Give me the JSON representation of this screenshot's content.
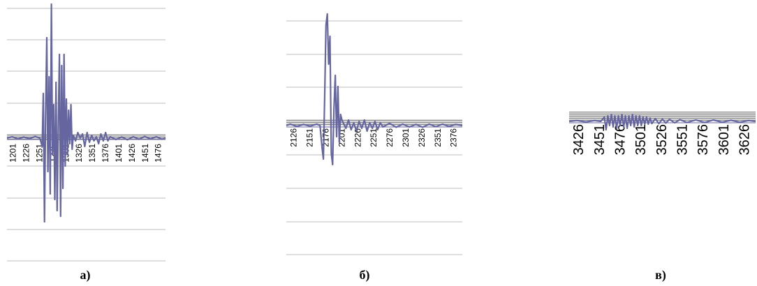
{
  "chart_data": [
    {
      "type": "line",
      "panel_label": "а)",
      "x_ticks": [
        "1201",
        "1226",
        "1251",
        "1276",
        "1301",
        "1326",
        "1351",
        "1376",
        "1401",
        "1426",
        "1451",
        "1476"
      ],
      "grid": true,
      "series": [
        {
          "color": "#6565a0",
          "points": [
            [
              1201,
              0
            ],
            [
              1210,
              0.5
            ],
            [
              1220,
              -0.3
            ],
            [
              1230,
              0.4
            ],
            [
              1240,
              -0.2
            ],
            [
              1250,
              0.6
            ],
            [
              1258,
              0
            ],
            [
              1262,
              -3
            ],
            [
              1264,
              16
            ],
            [
              1266,
              -30
            ],
            [
              1268,
              8
            ],
            [
              1270,
              36
            ],
            [
              1272,
              -12
            ],
            [
              1274,
              22
            ],
            [
              1276,
              -20
            ],
            [
              1278,
              48
            ],
            [
              1280,
              -6
            ],
            [
              1282,
              12
            ],
            [
              1284,
              -22
            ],
            [
              1286,
              20
            ],
            [
              1288,
              -26
            ],
            [
              1290,
              6
            ],
            [
              1292,
              30
            ],
            [
              1294,
              -28
            ],
            [
              1296,
              26
            ],
            [
              1298,
              -18
            ],
            [
              1300,
              30
            ],
            [
              1302,
              -10
            ],
            [
              1304,
              14
            ],
            [
              1306,
              -6
            ],
            [
              1308,
              10
            ],
            [
              1310,
              -2
            ],
            [
              1312,
              12
            ],
            [
              1314,
              -4
            ],
            [
              1316,
              1
            ],
            [
              1320,
              -1
            ],
            [
              1324,
              2
            ],
            [
              1328,
              0
            ],
            [
              1332,
              1.5
            ],
            [
              1336,
              -3
            ],
            [
              1340,
              2
            ],
            [
              1344,
              -1.5
            ],
            [
              1348,
              1
            ],
            [
              1352,
              -1
            ],
            [
              1356,
              0.5
            ],
            [
              1360,
              -2
            ],
            [
              1364,
              1.5
            ],
            [
              1368,
              -1
            ],
            [
              1372,
              2
            ],
            [
              1376,
              -1
            ],
            [
              1380,
              0.5
            ],
            [
              1390,
              -0.5
            ],
            [
              1400,
              0.4
            ],
            [
              1410,
              -0.6
            ],
            [
              1420,
              0.5
            ],
            [
              1430,
              -0.4
            ],
            [
              1440,
              0.6
            ],
            [
              1450,
              -0.3
            ],
            [
              1460,
              0.5
            ],
            [
              1470,
              -0.4
            ],
            [
              1476,
              0
            ]
          ]
        }
      ]
    },
    {
      "type": "line",
      "panel_label": "б)",
      "x_ticks": [
        "2126",
        "2151",
        "2176",
        "2201",
        "2226",
        "2251",
        "2276",
        "2301",
        "2326",
        "2351",
        "2376"
      ],
      "grid": true,
      "series": [
        {
          "color": "#6565a0",
          "points": [
            [
              2114,
              0
            ],
            [
              2120,
              0.5
            ],
            [
              2130,
              -0.3
            ],
            [
              2140,
              0.4
            ],
            [
              2150,
              -0.2
            ],
            [
              2160,
              0.5
            ],
            [
              2165,
              0
            ],
            [
              2168,
              -8
            ],
            [
              2170,
              -12
            ],
            [
              2172,
              10
            ],
            [
              2174,
              36
            ],
            [
              2176,
              40
            ],
            [
              2178,
              22
            ],
            [
              2180,
              32
            ],
            [
              2182,
              -10
            ],
            [
              2184,
              -14
            ],
            [
              2186,
              6
            ],
            [
              2188,
              18
            ],
            [
              2190,
              -4
            ],
            [
              2192,
              14
            ],
            [
              2194,
              -6
            ],
            [
              2196,
              4
            ],
            [
              2198,
              2
            ],
            [
              2200,
              1
            ],
            [
              2204,
              -1
            ],
            [
              2208,
              2
            ],
            [
              2212,
              -1.5
            ],
            [
              2216,
              1
            ],
            [
              2220,
              -2
            ],
            [
              2224,
              1.5
            ],
            [
              2228,
              -1
            ],
            [
              2232,
              2
            ],
            [
              2236,
              -2
            ],
            [
              2240,
              1
            ],
            [
              2244,
              -1
            ],
            [
              2248,
              1.5
            ],
            [
              2252,
              -1.5
            ],
            [
              2256,
              1
            ],
            [
              2260,
              -0.5
            ],
            [
              2270,
              0.8
            ],
            [
              2280,
              -0.6
            ],
            [
              2290,
              0.5
            ],
            [
              2300,
              -0.5
            ],
            [
              2310,
              0.4
            ],
            [
              2320,
              -0.6
            ],
            [
              2330,
              0.5
            ],
            [
              2340,
              -0.4
            ],
            [
              2350,
              0.5
            ],
            [
              2360,
              -0.3
            ],
            [
              2370,
              0.4
            ],
            [
              2380,
              0
            ]
          ]
        }
      ]
    },
    {
      "type": "line",
      "panel_label": "в)",
      "x_ticks": [
        "3426",
        "3451",
        "3476",
        "3501",
        "3526",
        "3551",
        "3576",
        "3601",
        "3626"
      ],
      "grid": true,
      "series": [
        {
          "color": "#6565a0",
          "points": [
            [
              3426,
              0
            ],
            [
              3435,
              0.3
            ],
            [
              3445,
              -0.2
            ],
            [
              3455,
              0.3
            ],
            [
              3462,
              0
            ],
            [
              3466,
              1.5
            ],
            [
              3468,
              -3
            ],
            [
              3470,
              2
            ],
            [
              3472,
              -1.5
            ],
            [
              3474,
              2.5
            ],
            [
              3476,
              -2
            ],
            [
              3478,
              2
            ],
            [
              3480,
              -2.5
            ],
            [
              3482,
              2
            ],
            [
              3484,
              -1.5
            ],
            [
              3486,
              2.5
            ],
            [
              3488,
              -2
            ],
            [
              3490,
              2
            ],
            [
              3492,
              -2.5
            ],
            [
              3494,
              2
            ],
            [
              3496,
              -1.5
            ],
            [
              3498,
              2.5
            ],
            [
              3500,
              -2
            ],
            [
              3502,
              2
            ],
            [
              3504,
              -1.5
            ],
            [
              3506,
              2
            ],
            [
              3508,
              -1.5
            ],
            [
              3510,
              1.5
            ],
            [
              3512,
              -1
            ],
            [
              3514,
              1.5
            ],
            [
              3516,
              -1
            ],
            [
              3518,
              1.2
            ],
            [
              3520,
              -0.8
            ],
            [
              3524,
              1
            ],
            [
              3528,
              -0.8
            ],
            [
              3532,
              0.8
            ],
            [
              3536,
              -0.6
            ],
            [
              3540,
              0.7
            ],
            [
              3546,
              -0.5
            ],
            [
              3552,
              0.6
            ],
            [
              3560,
              -0.4
            ],
            [
              3570,
              0.5
            ],
            [
              3580,
              -0.4
            ],
            [
              3590,
              0.5
            ],
            [
              3600,
              -0.3
            ],
            [
              3610,
              0.4
            ],
            [
              3620,
              -0.3
            ],
            [
              3630,
              0.3
            ],
            [
              3638,
              0
            ]
          ]
        }
      ]
    }
  ]
}
